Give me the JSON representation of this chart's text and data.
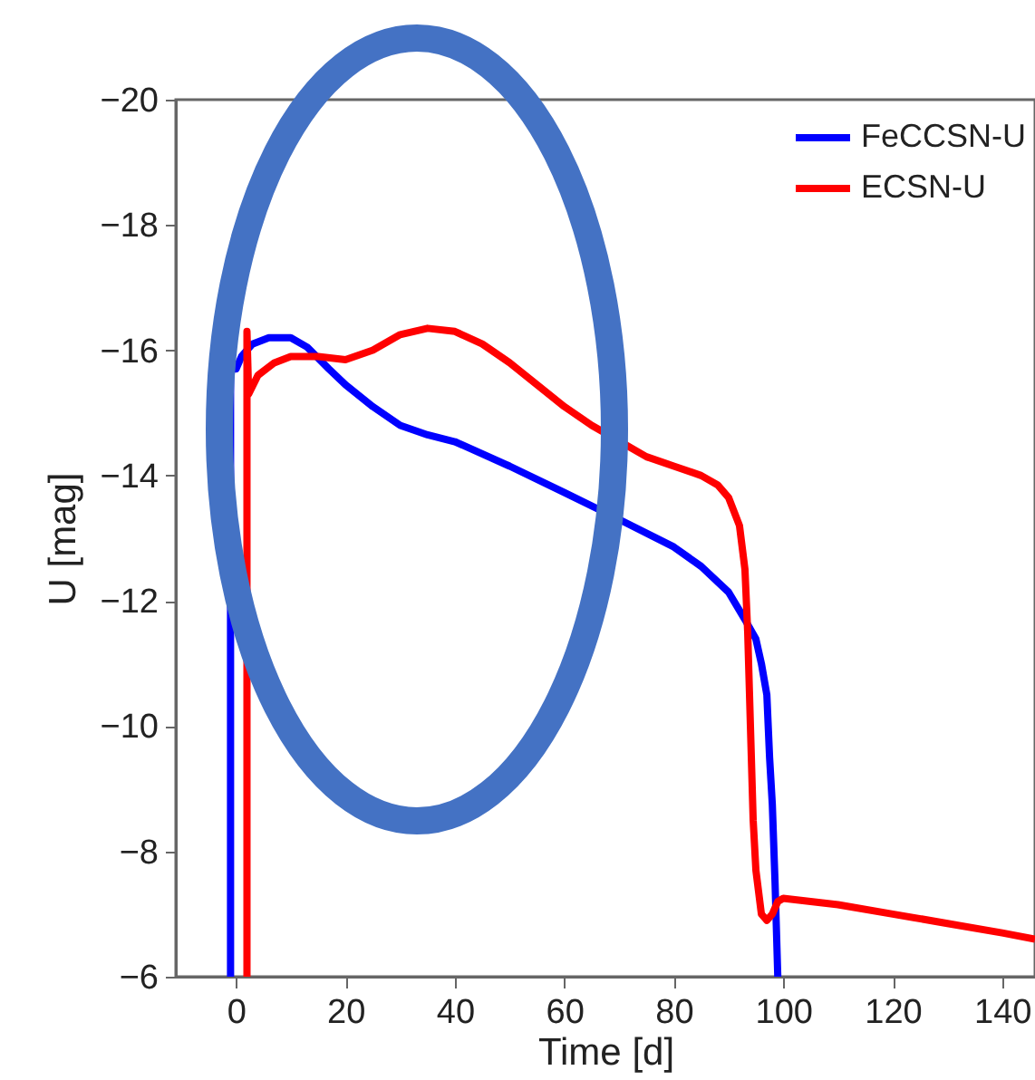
{
  "chart_data": {
    "type": "line",
    "xlabel": "Time [d]",
    "ylabel": "U [mag]",
    "xlim": [
      -11,
      146
    ],
    "xticks": [
      0,
      20,
      40,
      60,
      80,
      100,
      120,
      140
    ],
    "ylim": [
      -6,
      -20
    ],
    "yticks": [
      -20,
      -18,
      -16,
      -14,
      -12,
      -10,
      -8,
      -6
    ],
    "grid": false,
    "legend": "top right",
    "line_style": "solid",
    "marker": "none",
    "series": [
      {
        "name": "FeCCSN-U",
        "color": "#0000ff",
        "x": [
          -1,
          -1,
          0,
          1,
          3,
          6,
          10,
          13,
          17,
          20,
          25,
          30,
          35,
          40,
          50,
          60,
          70,
          80,
          85,
          90,
          93,
          95,
          96,
          97,
          97.5,
          98,
          98.5,
          99
        ],
        "values": [
          -6,
          -15.7,
          -15.7,
          -15.9,
          -16.1,
          -16.2,
          -16.2,
          -16.05,
          -15.7,
          -15.45,
          -15.1,
          -14.8,
          -14.65,
          -14.54,
          -14.15,
          -13.73,
          -13.3,
          -12.86,
          -12.55,
          -12.14,
          -11.7,
          -11.39,
          -11.0,
          -10.5,
          -9.5,
          -8.75,
          -7.5,
          -6
        ]
      },
      {
        "name": "ECSN-U",
        "color": "#ff0000",
        "x": [
          2,
          2,
          2.3,
          4,
          7,
          10,
          15,
          20,
          25,
          30,
          35,
          40,
          45,
          50,
          55,
          60,
          65,
          70,
          75,
          80,
          85,
          88,
          90,
          92,
          93,
          93.5,
          94,
          94.5,
          95,
          96,
          97,
          98,
          99,
          100,
          105,
          110,
          120,
          130,
          140,
          146
        ],
        "values": [
          -6,
          -16.3,
          -15.3,
          -15.6,
          -15.8,
          -15.9,
          -15.9,
          -15.85,
          -16.0,
          -16.25,
          -16.35,
          -16.3,
          -16.1,
          -15.8,
          -15.45,
          -15.1,
          -14.8,
          -14.55,
          -14.3,
          -14.15,
          -14.0,
          -13.85,
          -13.65,
          -13.2,
          -12.5,
          -11.5,
          -10,
          -8.5,
          -7.7,
          -7.0,
          -6.9,
          -7.0,
          -7.2,
          -7.25,
          -7.2,
          -7.15,
          -7.0,
          -6.85,
          -6.7,
          -6.6
        ]
      }
    ]
  }
}
